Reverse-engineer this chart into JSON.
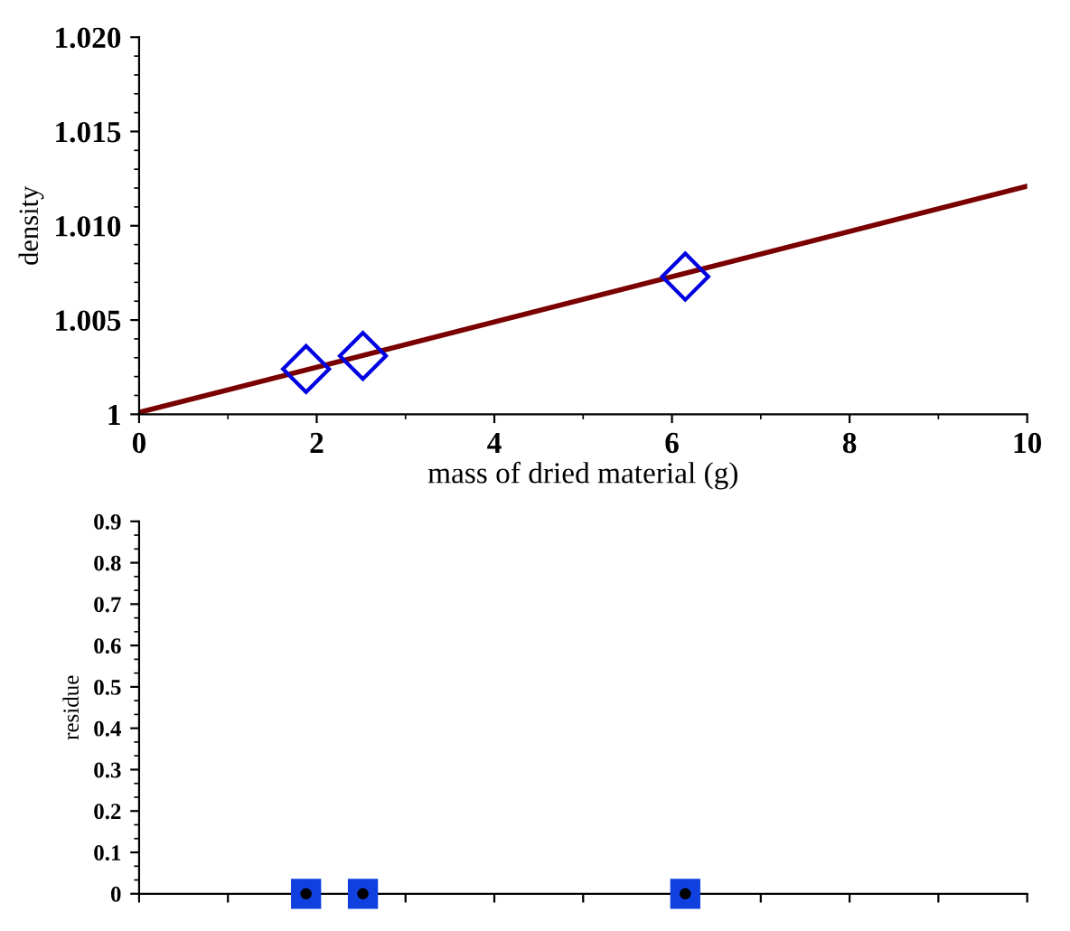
{
  "chart_data": [
    {
      "type": "scatter",
      "xlabel": "mass of dried material (g)",
      "ylabel": "density",
      "xlim": [
        0,
        10
      ],
      "xticks": [
        0,
        2,
        4,
        6,
        8,
        10
      ],
      "ylim": [
        1.0,
        1.02
      ],
      "yticks": [
        {
          "value": 1.0,
          "label": "1"
        },
        {
          "value": 1.005,
          "label": "1.005"
        },
        {
          "value": 1.01,
          "label": "1.010"
        },
        {
          "value": 1.015,
          "label": "1.015"
        },
        {
          "value": 1.02,
          "label": "1.020"
        }
      ],
      "grid": false,
      "series": [
        {
          "type": "scatter",
          "color": "#0000e0",
          "marker": "diamond",
          "x": [
            1.88,
            2.52,
            6.15
          ],
          "values": [
            1.0024,
            1.0031,
            1.0073
          ]
        },
        {
          "type": "line",
          "color": "#7a0000",
          "marker": "none",
          "line_style": "solid",
          "x": [
            0,
            10
          ],
          "values": [
            1.0001,
            1.0121
          ]
        }
      ]
    },
    {
      "type": "scatter",
      "ylabel": "residue",
      "xlim": [
        0,
        10
      ],
      "xticks": [
        {
          "value": 0,
          "label": null
        },
        {
          "value": 1,
          "label": null
        },
        {
          "value": 2,
          "label": null
        },
        {
          "value": 3,
          "label": null
        },
        {
          "value": 4,
          "label": null
        },
        {
          "value": 5,
          "label": null
        },
        {
          "value": 6,
          "label": null
        },
        {
          "value": 7,
          "label": null
        },
        {
          "value": 8,
          "label": null
        },
        {
          "value": 9,
          "label": null
        },
        {
          "value": 10,
          "label": null
        }
      ],
      "ylim": [
        0,
        0.9
      ],
      "yticks": [
        0,
        0.1,
        0.2,
        0.3,
        0.4,
        0.5,
        0.6,
        0.7,
        0.8,
        0.9
      ],
      "tick_labels": "y",
      "grid": false,
      "series": [
        {
          "type": "scatter",
          "color": "#1040e0",
          "marker": "square",
          "x": [
            1.88,
            2.52,
            6.15
          ],
          "values": [
            0,
            0,
            0
          ]
        },
        {
          "type": "scatter",
          "color": "#000000",
          "marker": "circle",
          "x": [
            1.88,
            2.52,
            6.15
          ],
          "values": [
            0,
            0,
            0
          ]
        }
      ]
    }
  ]
}
